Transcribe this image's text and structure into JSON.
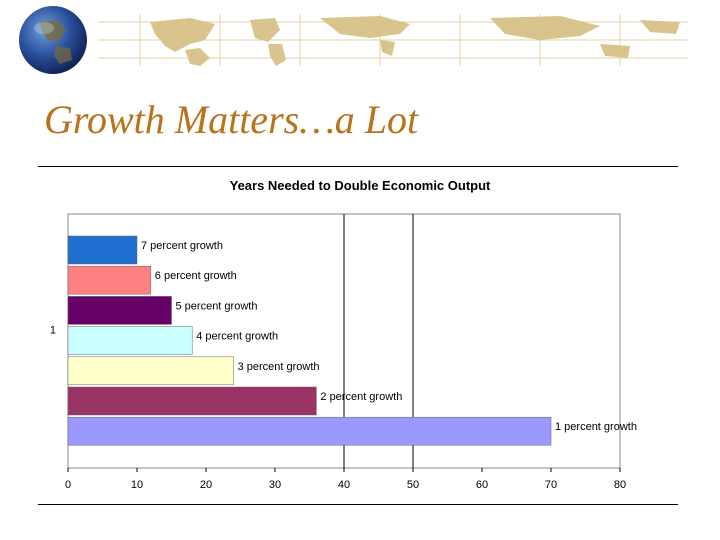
{
  "slide": {
    "title": "Growth Matters…a Lot"
  },
  "colors": {
    "title": "#b8731c",
    "banner_background": "#ffffff",
    "map_land": "#d8c48c"
  },
  "chart_data": {
    "type": "bar",
    "orientation": "horizontal",
    "title": "Years Needed to Double Economic Output",
    "xlabel": "",
    "ylabel": "",
    "category_axis_label": "1",
    "xlim": [
      0,
      80
    ],
    "xticks": [
      0,
      10,
      20,
      30,
      40,
      50,
      60,
      70,
      80
    ],
    "gridlines_x": [
      40,
      50
    ],
    "legend": "none",
    "bars": [
      {
        "label": "7 percent growth",
        "value": 10,
        "color": "#1f6fd0"
      },
      {
        "label": "6 percent growth",
        "value": 12,
        "color": "#ff8080"
      },
      {
        "label": "5 percent growth",
        "value": 15,
        "color": "#660066"
      },
      {
        "label": "4 percent growth",
        "value": 18,
        "color": "#ccffff"
      },
      {
        "label": "3 percent growth",
        "value": 24,
        "color": "#ffffcc"
      },
      {
        "label": "2 percent growth",
        "value": 36,
        "color": "#993366"
      },
      {
        "label": "1 percent growth",
        "value": 70,
        "color": "#9999ff"
      }
    ]
  }
}
